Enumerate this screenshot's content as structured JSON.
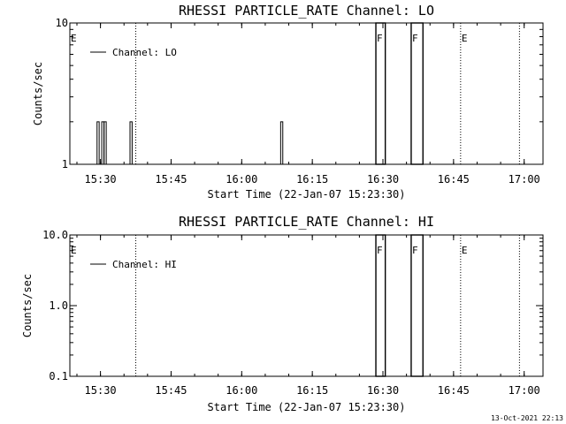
{
  "footer": {
    "timestamp": "13-Oct-2021 22:13"
  },
  "chart_data": [
    {
      "type": "line",
      "title": "RHESSI PARTICLE_RATE Channel: LO",
      "xlabel": "Start Time (22-Jan-07 15:23:30)",
      "ylabel": "Counts/sec",
      "yscale": "log",
      "ylim": [
        1,
        10
      ],
      "xlim": [
        "15:23:30",
        "17:04:00"
      ],
      "xticks": [
        "15:30",
        "15:45",
        "16:00",
        "16:15",
        "16:30",
        "16:45",
        "17:00"
      ],
      "yticks": [
        {
          "value": 1,
          "label": "1"
        },
        {
          "value": 10,
          "label": "10"
        }
      ],
      "grid": false,
      "legend": "top-left",
      "series": [
        {
          "name": "Channel: LO",
          "spikes": [
            {
              "x": "15:29:30",
              "y": 2
            },
            {
              "x": "15:30:30",
              "y": 2
            },
            {
              "x": "15:31:00",
              "y": 2
            },
            {
              "x": "15:36:30",
              "y": 2
            },
            {
              "x": "16:08:30",
              "y": 2
            }
          ]
        }
      ],
      "boxes": [
        {
          "x0": "16:28:30",
          "x1": "16:30:30"
        },
        {
          "x0": "16:36:00",
          "x1": "16:38:30"
        }
      ],
      "dotted_markers": [
        "15:37:30",
        "16:46:30",
        "16:59:00"
      ],
      "flags": [
        {
          "label": "E",
          "x": "15:23:30"
        },
        {
          "label": "F",
          "x": "16:28:30"
        },
        {
          "label": "F",
          "x": "16:36:00"
        },
        {
          "label": "E",
          "x": "16:46:30"
        }
      ]
    },
    {
      "type": "line",
      "title": "RHESSI PARTICLE_RATE Channel: HI",
      "xlabel": "Start Time (22-Jan-07 15:23:30)",
      "ylabel": "Counts/sec",
      "yscale": "log",
      "ylim": [
        0.1,
        10
      ],
      "xlim": [
        "15:23:30",
        "17:04:00"
      ],
      "xticks": [
        "15:30",
        "15:45",
        "16:00",
        "16:15",
        "16:30",
        "16:45",
        "17:00"
      ],
      "yticks": [
        {
          "value": 0.1,
          "label": "0.1"
        },
        {
          "value": 1,
          "label": "1.0"
        },
        {
          "value": 10,
          "label": "10.0"
        }
      ],
      "grid": false,
      "legend": "top-left",
      "series": [
        {
          "name": "Channel: HI",
          "spikes": []
        }
      ],
      "boxes": [
        {
          "x0": "16:28:30",
          "x1": "16:30:30"
        },
        {
          "x0": "16:36:00",
          "x1": "16:38:30"
        }
      ],
      "dotted_markers": [
        "15:37:30",
        "16:46:30",
        "16:59:00"
      ],
      "flags": [
        {
          "label": "E",
          "x": "15:23:30"
        },
        {
          "label": "F",
          "x": "16:28:30"
        },
        {
          "label": "F",
          "x": "16:36:00"
        },
        {
          "label": "E",
          "x": "16:46:30"
        }
      ]
    }
  ]
}
